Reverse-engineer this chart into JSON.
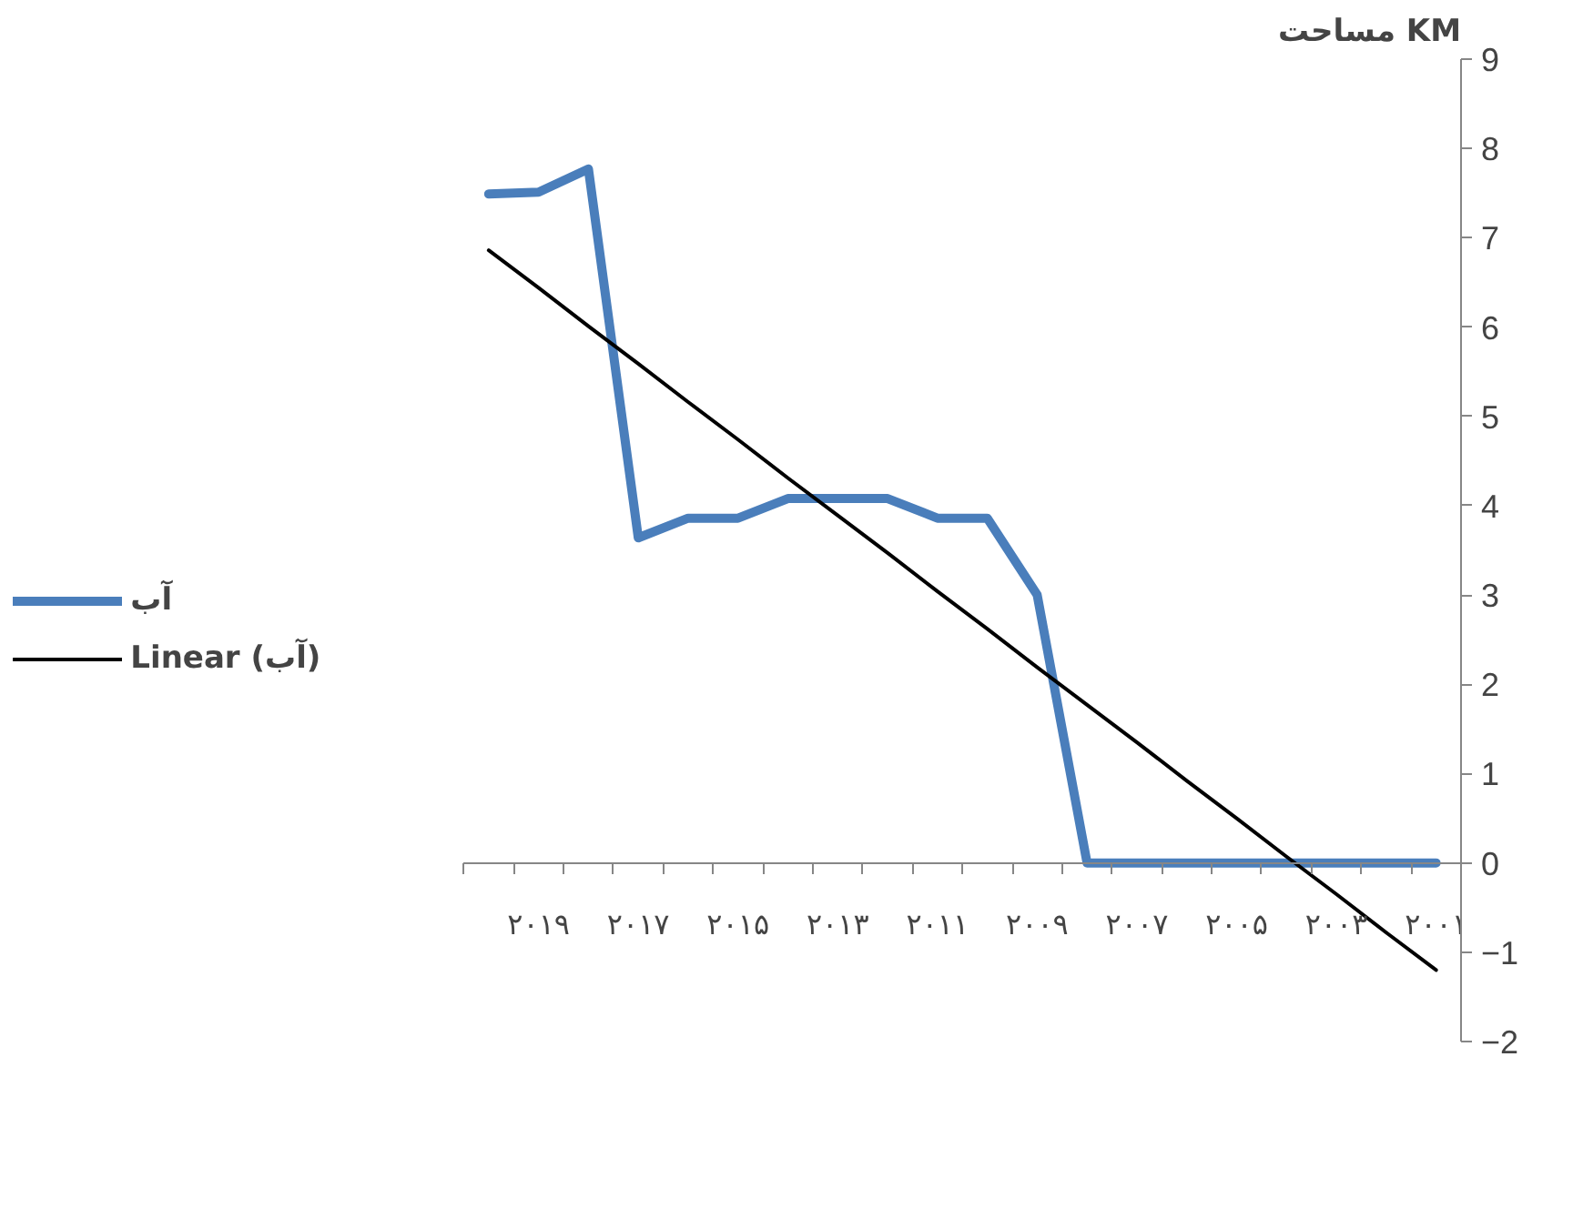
{
  "chart_data": {
    "type": "line",
    "ylabel": "مساحت KM",
    "categories": [
      null,
      "۲۰۱۹",
      null,
      "۲۰۱۷",
      null,
      "۲۰۱۵",
      null,
      "۲۰۱۳",
      null,
      "۲۰۱۱",
      null,
      "۲۰۰۹",
      null,
      "۲۰۰۷",
      null,
      "۲۰۰۵",
      null,
      "۲۰۰۳",
      null,
      "۲۰۰۱"
    ],
    "series": [
      {
        "name": "آب",
        "color": "#4a7ebb",
        "values": [
          7.49,
          7.51,
          7.77,
          3.64,
          3.86,
          3.86,
          4.08,
          4.08,
          4.08,
          3.86,
          3.86,
          3.0,
          0,
          0,
          0,
          0,
          0,
          0,
          0,
          0
        ]
      },
      {
        "name": "Linear (آب)",
        "color": "#000000",
        "values": [
          6.86,
          6.44,
          6.01,
          5.59,
          5.16,
          4.74,
          4.31,
          3.89,
          3.47,
          3.04,
          2.62,
          2.19,
          1.77,
          1.35,
          0.92,
          0.5,
          0.07,
          -0.35,
          -0.78,
          -1.2
        ]
      }
    ],
    "ylim": [
      -2,
      9
    ],
    "yticks": [
      -2,
      -1,
      0,
      1,
      2,
      3,
      4,
      5,
      6,
      7,
      8,
      9
    ],
    "legend": "left",
    "marker": "none",
    "line_style": "solid"
  }
}
